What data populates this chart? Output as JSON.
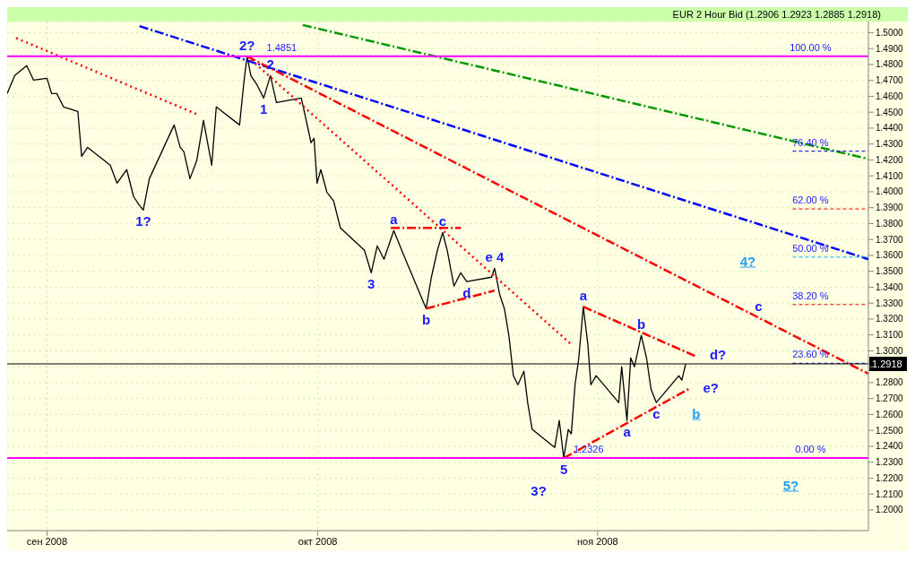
{
  "chart_data": {
    "type": "line",
    "title": "EUR 2 Hour Bid (1.2906 1.2923 1.2885 1.2918)",
    "xlim": [
      "2008-08-27T14:00",
      "2008-12-01T00:00"
    ],
    "ylim": [
      1.187,
      1.507
    ],
    "xticks": [
      {
        "value": "2008-09-01",
        "label": "сен 2008"
      },
      {
        "value": "2008-10-01",
        "label": "окт 2008"
      },
      {
        "value": "2008-11-01",
        "label": "ноя 2008"
      }
    ],
    "yticks": [
      {
        "value": 1.2,
        "label": "1.2000"
      },
      {
        "value": 1.21,
        "label": "1.2100"
      },
      {
        "value": 1.22,
        "label": "1.2200"
      },
      {
        "value": 1.23,
        "label": "1.2300"
      },
      {
        "value": 1.24,
        "label": "1.2400"
      },
      {
        "value": 1.25,
        "label": "1.2500"
      },
      {
        "value": 1.26,
        "label": "1.2600"
      },
      {
        "value": 1.27,
        "label": "1.2700"
      },
      {
        "value": 1.28,
        "label": "1.2800"
      },
      {
        "value": 1.29,
        "label": null
      },
      {
        "value": 1.3,
        "label": "1.3000"
      },
      {
        "value": 1.31,
        "label": "1.3100"
      },
      {
        "value": 1.32,
        "label": "1.3200"
      },
      {
        "value": 1.33,
        "label": "1.3300"
      },
      {
        "value": 1.34,
        "label": "1.3400"
      },
      {
        "value": 1.35,
        "label": "1.3500"
      },
      {
        "value": 1.36,
        "label": "1.3600"
      },
      {
        "value": 1.37,
        "label": "1.3700"
      },
      {
        "value": 1.38,
        "label": "1.3800"
      },
      {
        "value": 1.39,
        "label": "1.3900"
      },
      {
        "value": 1.4,
        "label": "1.4000"
      },
      {
        "value": 1.41,
        "label": "1.4100"
      },
      {
        "value": 1.42,
        "label": "1.4200"
      },
      {
        "value": 1.43,
        "label": "1.4300"
      },
      {
        "value": 1.44,
        "label": "1.4400"
      },
      {
        "value": 1.45,
        "label": "1.4500"
      },
      {
        "value": 1.46,
        "label": "1.4600"
      },
      {
        "value": 1.47,
        "label": "1.4700"
      },
      {
        "value": 1.48,
        "label": "1.4800"
      },
      {
        "value": 1.49,
        "label": "1.4900"
      },
      {
        "value": 1.5,
        "label": "1.5000"
      }
    ],
    "grid": true,
    "marker": "none",
    "series": [
      {
        "color": "#000000",
        "line_style": "solid",
        "x": [
          "2008-08-27T14:00",
          "2008-08-28T10:00",
          "2008-08-29T18:00",
          "2008-08-30T12:00",
          "2008-09-01T00:00",
          "2008-09-01T12:00",
          "2008-09-02T02:00",
          "2008-09-02T20:00",
          "2008-09-03T12:00",
          "2008-09-04T10:00",
          "2008-09-04T20:00",
          "2008-09-05T12:00",
          "2008-09-08T00:00",
          "2008-09-08T18:00",
          "2008-09-09T20:00",
          "2008-09-10T14:00",
          "2008-09-11T06:00",
          "2008-09-11T16:00",
          "2008-09-12T08:00",
          "2008-09-15T02:00",
          "2008-09-15T18:00",
          "2008-09-16T04:00",
          "2008-09-16T20:00",
          "2008-09-17T14:00",
          "2008-09-18T08:00",
          "2008-09-19T06:00",
          "2008-09-19T18:00",
          "2008-09-22T08:00",
          "2008-09-22T20:00",
          "2008-09-23T04:00",
          "2008-09-23T14:00",
          "2008-09-24T06:00",
          "2008-09-25T00:00",
          "2008-09-25T18:00",
          "2008-09-26T10:00",
          "2008-09-29T04:00",
          "2008-09-29T12:00",
          "2008-09-30T06:00",
          "2008-09-30T14:00",
          "2008-09-30T22:00",
          "2008-10-01T08:00",
          "2008-10-02T00:00",
          "2008-10-02T18:00",
          "2008-10-03T12:00",
          "2008-10-06T04:00",
          "2008-10-06T22:00",
          "2008-10-07T14:00",
          "2008-10-08T08:00",
          "2008-10-09T10:00",
          "2008-10-10T12:00",
          "2008-10-13T00:00",
          "2008-10-13T14:00",
          "2008-10-14T06:00",
          "2008-10-14T20:00",
          "2008-10-15T08:00",
          "2008-10-16T02:00",
          "2008-10-16T20:00",
          "2008-10-17T12:00",
          "2008-10-20T06:00",
          "2008-10-20T14:00",
          "2008-10-21T04:00",
          "2008-10-21T16:00",
          "2008-10-22T04:00",
          "2008-10-22T16:00",
          "2008-10-23T04:00",
          "2008-10-23T20:00",
          "2008-10-24T06:00",
          "2008-10-24T18:00",
          "2008-10-27T06:00",
          "2008-10-27T18:00",
          "2008-10-28T06:00",
          "2008-10-28T18:00",
          "2008-10-29T02:00",
          "2008-10-29T12:00",
          "2008-10-29T22:00",
          "2008-10-30T10:00",
          "2008-10-30T22:00",
          "2008-10-31T06:00",
          "2008-10-31T20:00",
          "2008-11-03T08:00",
          "2008-11-03T16:00",
          "2008-11-04T06:00",
          "2008-11-04T16:00",
          "2008-11-05T02:00",
          "2008-11-05T20:00",
          "2008-11-06T10:00",
          "2008-11-06T22:00",
          "2008-11-07T12:00",
          "2008-11-10T00:00",
          "2008-11-10T08:00",
          "2008-11-10T18:00"
        ],
        "values": [
          1.4617,
          1.473,
          1.4792,
          1.4702,
          1.4713,
          1.4617,
          1.4617,
          1.4533,
          1.4521,
          1.4505,
          1.4223,
          1.4279,
          1.4167,
          1.4054,
          1.4139,
          1.397,
          1.3913,
          1.3885,
          1.4082,
          1.442,
          1.4279,
          1.4251,
          1.4082,
          1.4195,
          1.4448,
          1.4167,
          1.4533,
          1.442,
          1.4702,
          1.4851,
          1.473,
          1.4673,
          1.4589,
          1.473,
          1.4561,
          1.4589,
          1.4505,
          1.4308,
          1.4336,
          1.4054,
          1.4139,
          1.3998,
          1.3942,
          1.3773,
          1.3632,
          1.3491,
          1.366,
          1.3576,
          1.3756,
          1.3604,
          1.3266,
          1.3463,
          1.3632,
          1.3744,
          1.3632,
          1.3407,
          1.3491,
          1.3435,
          1.3463,
          1.3519,
          1.335,
          1.3266,
          1.3097,
          1.2844,
          1.2787,
          1.2872,
          1.2675,
          1.2506,
          1.2393,
          1.2562,
          1.2326,
          1.2506,
          1.2478,
          1.2787,
          1.2956,
          1.3277,
          1.3041,
          1.2787,
          1.2844,
          1.2675,
          1.29,
          1.2562,
          1.2956,
          1.29,
          1.3097,
          1.2956,
          1.2759,
          1.2675,
          1.2844,
          1.2816,
          1.2917
        ]
      },
      {
        "color": "#0000ff",
        "line_style": "dashed",
        "x": [
          "2008-09-11T06:00",
          "2008-12-01T00:00"
        ],
        "values": [
          1.5041,
          1.3576
        ]
      },
      {
        "color": "#009900",
        "line_style": "dashed",
        "x": [
          "2008-09-29T08:00",
          "2008-12-01T00:00"
        ],
        "values": [
          1.5048,
          1.4206
        ]
      },
      {
        "color": "#ff0000",
        "line_style": "dashed",
        "x": [
          "2008-09-23T04:00",
          "2008-12-01T00:00"
        ],
        "values": [
          1.4851,
          1.2856
        ]
      },
      {
        "color": "#ff0000",
        "line_style": "dotted",
        "x": [
          "2008-08-28T14:00",
          "2008-09-17T14:00"
        ],
        "values": [
          1.4966,
          1.4488
        ]
      },
      {
        "color": "#ff0000",
        "line_style": "dotted",
        "x": [
          "2008-09-23T04:00",
          "2008-10-29T02:00"
        ],
        "values": [
          1.4851,
          1.3041
        ]
      },
      {
        "color": "#ff0000",
        "line_style": "dashed",
        "x": [
          "2008-10-30T10:00",
          "2008-11-11T20:00"
        ],
        "values": [
          1.3277,
          1.2967
        ]
      },
      {
        "color": "#ff0000",
        "line_style": "dashed",
        "x": [
          "2008-10-28T06:00",
          "2008-11-11T02:00"
        ],
        "values": [
          1.2326,
          1.276
        ]
      },
      {
        "color": "#ff0000",
        "line_style": "dashed",
        "x": [
          "2008-10-09T02:00",
          "2008-10-16T20:00"
        ],
        "values": [
          1.3773,
          1.3773
        ]
      },
      {
        "color": "#ff0000",
        "line_style": "dashed",
        "x": [
          "2008-10-13T00:00",
          "2008-10-20T14:00"
        ],
        "values": [
          1.3266,
          1.3379
        ]
      }
    ],
    "ref_lines": [
      {
        "axis": "y",
        "value": 1.4851,
        "color": "#ff00ff",
        "line_style": "solid"
      },
      {
        "axis": "y",
        "value": 1.4255,
        "color": "#0000cc",
        "line_style": "dashed"
      },
      {
        "axis": "y",
        "value": 1.3892,
        "color": "#ff0000",
        "line_style": "dashed"
      },
      {
        "axis": "y",
        "value": 1.3589,
        "color": "#00aaff",
        "line_style": "dashed"
      },
      {
        "axis": "y",
        "value": 1.3291,
        "color": "#ff0000",
        "line_style": "dashed"
      },
      {
        "axis": "y",
        "value": 1.2922,
        "color": "#0000cc",
        "line_style": "dashed"
      },
      {
        "axis": "y",
        "value": 1.2326,
        "color": "#ff00ff",
        "line_style": "solid"
      },
      {
        "axis": "y",
        "value": 1.2918,
        "label": "1.2918",
        "color": "#000000",
        "line_style": "solid"
      }
    ],
    "annotations": [
      {
        "text": "1.4851",
        "x": "2008-09-27T00:00",
        "y": 1.4851
      },
      {
        "text": "1.2326",
        "x": "2008-10-31T00:00",
        "y": 1.2326
      },
      {
        "text": "100.00 %",
        "x": "2008-11-24T14:00",
        "y": 1.4851
      },
      {
        "text": "76.40 %",
        "x": "2008-11-24T14:00",
        "y": 1.4255
      },
      {
        "text": "62.00 %",
        "x": "2008-11-24T14:00",
        "y": 1.3892
      },
      {
        "text": "50.00 %",
        "x": "2008-11-24T14:00",
        "y": 1.3589
      },
      {
        "text": "38.20 %",
        "x": "2008-11-24T14:00",
        "y": 1.3291
      },
      {
        "text": "23.60 %",
        "x": "2008-11-24T14:00",
        "y": 1.2922
      },
      {
        "text": "0.00 %",
        "x": "2008-11-24T14:00",
        "y": 1.2326
      },
      {
        "text": "1?",
        "x": "2008-09-11T16:00",
        "y": 1.3885
      },
      {
        "text": "2?",
        "x": "2008-09-23T04:00",
        "y": 1.4851
      },
      {
        "text": "2",
        "x": "2008-09-25T18:00",
        "y": 1.473
      },
      {
        "text": "1",
        "x": "2008-09-25T00:00",
        "y": 1.4589
      },
      {
        "text": "3",
        "x": "2008-10-06T22:00",
        "y": 1.3491
      },
      {
        "text": "a",
        "x": "2008-10-09T10:00",
        "y": 1.3756
      },
      {
        "text": "b",
        "x": "2008-10-13T00:00",
        "y": 1.3266
      },
      {
        "text": "c",
        "x": "2008-10-14T20:00",
        "y": 1.3744
      },
      {
        "text": "d",
        "x": "2008-10-17T12:00",
        "y": 1.3435
      },
      {
        "text": "e 4",
        "x": "2008-10-20T14:00",
        "y": 1.3519
      },
      {
        "text": "5",
        "x": "2008-10-28T06:00",
        "y": 1.2326
      },
      {
        "text": "3?",
        "x": "2008-10-28T06:00",
        "y": 1.2326
      },
      {
        "text": "a",
        "x": "2008-10-30T10:00",
        "y": 1.3277
      },
      {
        "text": "a",
        "x": "2008-11-04T06:00",
        "y": 1.2562
      },
      {
        "text": "b",
        "x": "2008-11-05T20:00",
        "y": 1.3097
      },
      {
        "text": "c",
        "x": "2008-11-07T12:00",
        "y": 1.2675
      },
      {
        "text": "d?",
        "x": "2008-11-11T20:00",
        "y": 1.2967
      },
      {
        "text": "e?",
        "x": "2008-11-11T02:00",
        "y": 1.276
      },
      {
        "text": "c",
        "x": "2008-11-18T20:00",
        "y": 1.3209
      },
      "4?",
      "b",
      "5?"
    ]
  }
}
